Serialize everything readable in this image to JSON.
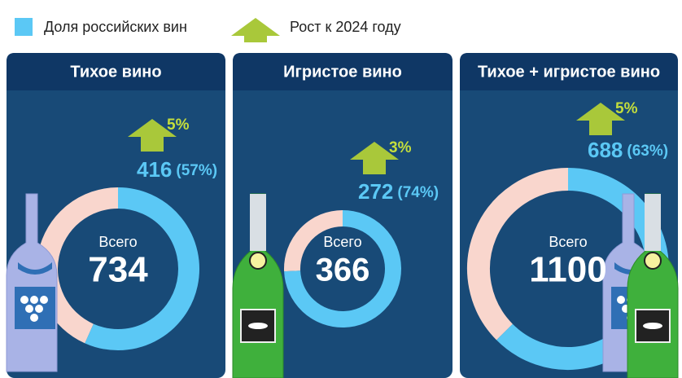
{
  "legend": {
    "share": "Доля российских вин",
    "growth": "Рост к 2024 году"
  },
  "chart_data": [
    {
      "type": "donut",
      "title": "Тихое вино",
      "center_label": "Всего",
      "total": 734,
      "value": 416,
      "share": 57,
      "share_label": "(57%)",
      "growth": 5,
      "growth_label": "5%",
      "color": "#5bc8f5",
      "rest_color": "#f9d6cd"
    },
    {
      "type": "donut",
      "title": "Игристое вино",
      "center_label": "Всего",
      "total": 366,
      "value": 272,
      "share": 74,
      "share_label": "(74%)",
      "growth": 3,
      "growth_label": "3%",
      "color": "#5bc8f5",
      "rest_color": "#f9d6cd"
    },
    {
      "type": "donut",
      "title": "Тихое + игристое вино",
      "center_label": "Всего",
      "total": 1100,
      "value": 688,
      "share": 63,
      "share_label": "(63%)",
      "growth": 5,
      "growth_label": "5%",
      "color": "#5bc8f5",
      "rest_color": "#f9d6cd"
    }
  ]
}
